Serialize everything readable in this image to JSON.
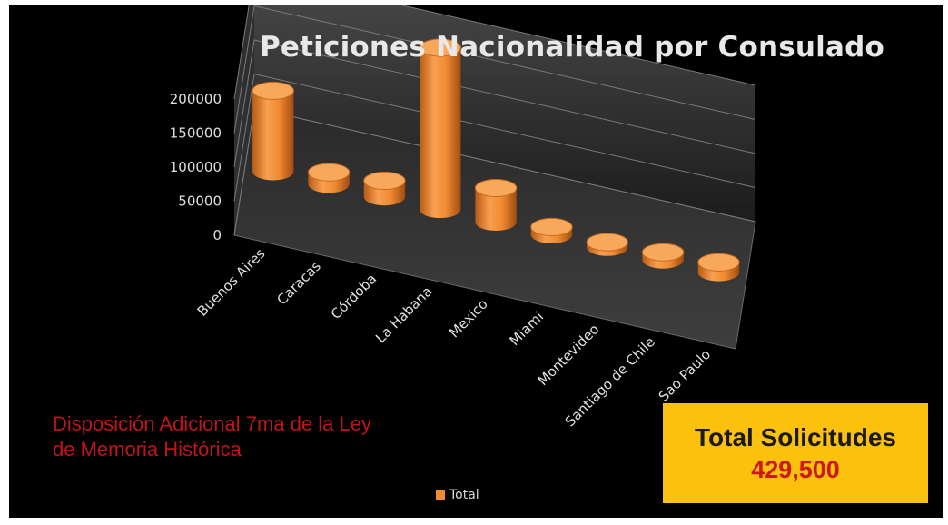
{
  "chart_data": {
    "type": "bar",
    "title": "Peticiones Nacionalidad por Consulado",
    "categories": [
      "Buenos Aires",
      "Caracas",
      "Córdoba",
      "La Habana",
      "Mexico",
      "Miami",
      "Montevideo",
      "Santiago de Chile",
      "Sao Paulo"
    ],
    "series": [
      {
        "name": "Total",
        "values": [
          95000,
          14000,
          19000,
          190000,
          40000,
          9000,
          6000,
          9000,
          12000
        ]
      }
    ],
    "ylim": [
      0,
      200000
    ],
    "yticks": [
      "200000",
      "150000",
      "100000",
      "50000",
      "0"
    ],
    "grid": true,
    "legend": "bottom",
    "style": "3d-cylinder",
    "bar_color": "#f08a30"
  },
  "note": "Disposición Adicional 7ma de la Ley de Memoria Histórica",
  "total": {
    "label": "Total Solicitudes",
    "value": "429,500"
  },
  "colors": {
    "background": "#000000",
    "box": "#fcc10c",
    "note_text": "#c0141c",
    "total_value": "#cc1a1a"
  }
}
